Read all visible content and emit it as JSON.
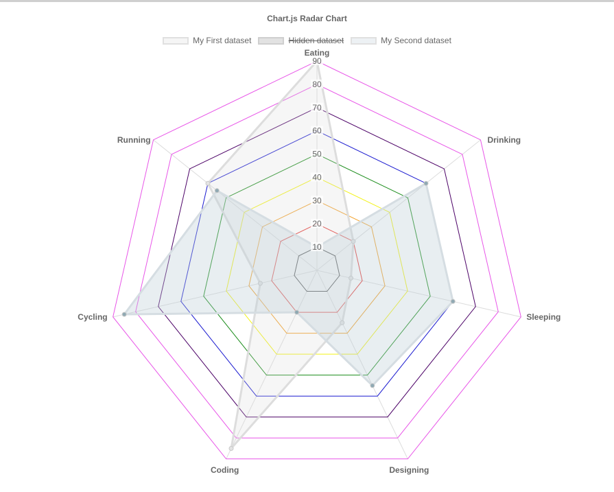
{
  "chart_data": {
    "type": "radar",
    "title": "Chart.js Radar Chart",
    "labels": [
      "Eating",
      "Drinking",
      "Sleeping",
      "Designing",
      "Coding",
      "Cycling",
      "Running"
    ],
    "ticks": [
      10,
      20,
      30,
      40,
      50,
      60,
      70,
      80,
      90
    ],
    "r_range": [
      0,
      90
    ],
    "legend_position": "top",
    "grid_colors": [
      "#333333",
      "#e53935",
      "#f2a12a",
      "#f2f216",
      "#1a8c1a",
      "#1a1ad0",
      "#4b0066",
      "#e855e8",
      "#e855e8"
    ],
    "series": [
      {
        "name": "My First dataset",
        "values": [
          90,
          20,
          15,
          25,
          85,
          25,
          60
        ],
        "hidden": false,
        "fill": "rgba(220,220,220,0.25)",
        "border": "#dddddd",
        "point_color": "#e4e4e4"
      },
      {
        "name": "Hidden dataset",
        "hidden": true,
        "fill": "rgba(200,200,200,0.35)",
        "border": "#d0d0d0"
      },
      {
        "name": "My Second dataset",
        "values": [
          10,
          60,
          60,
          55,
          20,
          85,
          55
        ],
        "hidden": false,
        "fill": "rgba(190,205,215,0.35)",
        "border": "#d5dde2",
        "point_color": "#8fa9b3"
      }
    ]
  }
}
